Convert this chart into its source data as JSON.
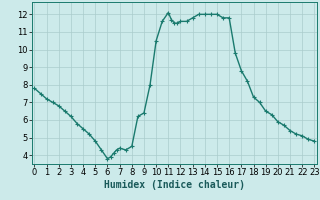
{
  "xlabel": "Humidex (Indice chaleur)",
  "x_values": [
    0,
    0.5,
    1,
    1.5,
    2,
    2.5,
    3,
    3.5,
    4,
    4.5,
    5,
    5.5,
    6,
    6.25,
    6.5,
    6.75,
    7,
    7.5,
    8,
    8.5,
    9,
    9.5,
    10,
    10.5,
    11,
    11.25,
    11.5,
    11.75,
    12,
    12.5,
    13,
    13.5,
    14,
    14.5,
    15,
    15.5,
    16,
    16.5,
    17,
    17.5,
    18,
    18.5,
    19,
    19.5,
    20,
    20.5,
    21,
    21.5,
    22,
    22.5,
    23
  ],
  "y_values": [
    7.8,
    7.5,
    7.2,
    7.0,
    6.8,
    6.5,
    6.2,
    5.8,
    5.5,
    5.2,
    4.8,
    4.3,
    3.8,
    3.9,
    4.1,
    4.3,
    4.4,
    4.3,
    4.5,
    6.2,
    6.4,
    8.0,
    10.5,
    11.6,
    12.1,
    11.7,
    11.5,
    11.5,
    11.6,
    11.6,
    11.8,
    12.0,
    12.0,
    12.0,
    12.0,
    11.8,
    11.8,
    9.8,
    8.8,
    8.2,
    7.3,
    7.0,
    6.5,
    6.3,
    5.9,
    5.7,
    5.4,
    5.2,
    5.1,
    4.9,
    4.8
  ],
  "line_color": "#1a7a6e",
  "marker": "+",
  "marker_size": 3,
  "bg_color": "#cceaea",
  "grid_color": "#aacccc",
  "ylim": [
    3.5,
    12.7
  ],
  "xlim": [
    -0.2,
    23.2
  ],
  "yticks": [
    4,
    5,
    6,
    7,
    8,
    9,
    10,
    11,
    12
  ],
  "xticks": [
    0,
    1,
    2,
    3,
    4,
    5,
    6,
    7,
    8,
    9,
    10,
    11,
    12,
    13,
    14,
    15,
    16,
    17,
    18,
    19,
    20,
    21,
    22,
    23
  ],
  "xlabel_fontsize": 7,
  "tick_fontsize": 6,
  "line_width": 1.0
}
